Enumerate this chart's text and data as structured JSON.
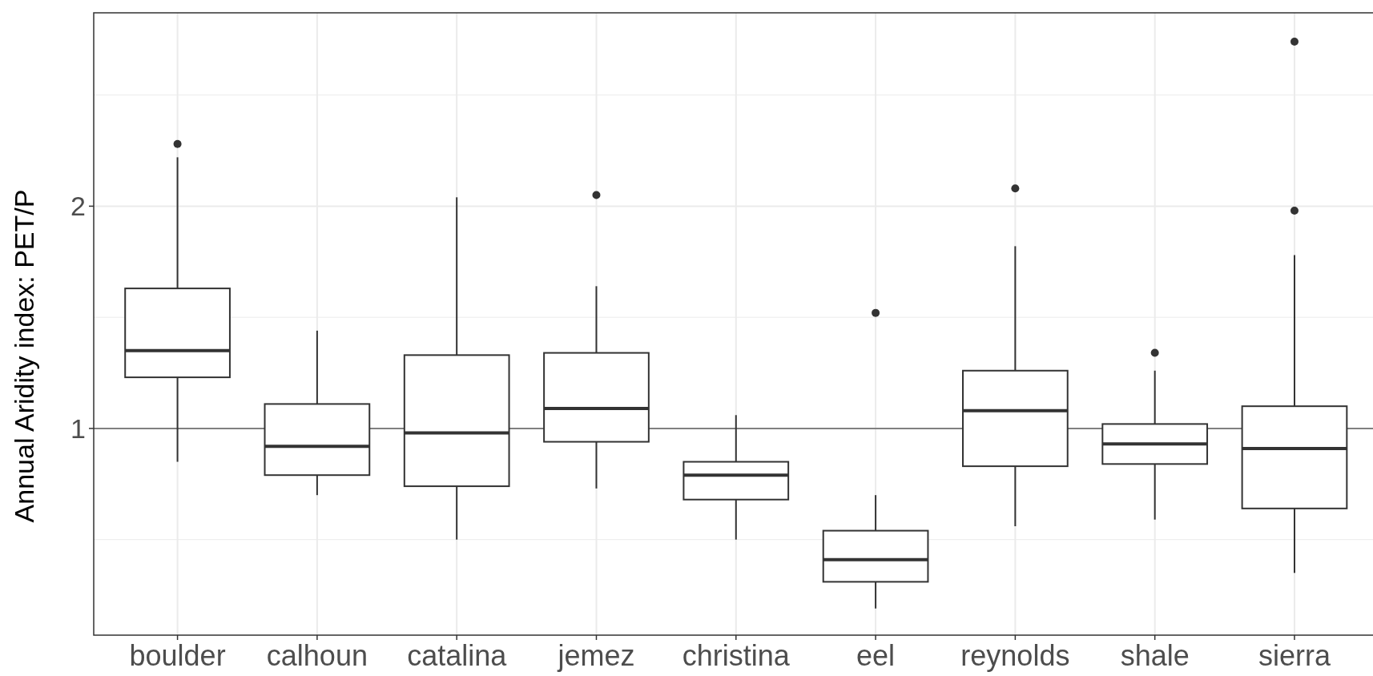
{
  "chart_data": {
    "type": "box",
    "ylabel": "Annual Aridity index: PET/P",
    "categories": [
      "boulder",
      "calhoun",
      "catalina",
      "jemez",
      "christina",
      "eel",
      "reynolds",
      "shale",
      "sierra"
    ],
    "boxes": [
      {
        "low": 0.85,
        "q1": 1.23,
        "median": 1.35,
        "q3": 1.63,
        "high": 2.22,
        "outliers": [
          2.28
        ]
      },
      {
        "low": 0.7,
        "q1": 0.79,
        "median": 0.92,
        "q3": 1.11,
        "high": 1.44
      },
      {
        "low": 0.5,
        "q1": 0.74,
        "median": 0.98,
        "q3": 1.33,
        "high": 2.04
      },
      {
        "low": 0.73,
        "q1": 0.94,
        "median": 1.09,
        "q3": 1.34,
        "high": 1.64,
        "outliers": [
          2.05
        ]
      },
      {
        "low": 0.5,
        "q1": 0.68,
        "median": 0.79,
        "q3": 0.85,
        "high": 1.06
      },
      {
        "low": 0.19,
        "q1": 0.31,
        "median": 0.41,
        "q3": 0.54,
        "high": 0.7,
        "outliers": [
          1.52
        ]
      },
      {
        "low": 0.56,
        "q1": 0.83,
        "median": 1.08,
        "q3": 1.26,
        "high": 1.82,
        "outliers": [
          2.08
        ]
      },
      {
        "low": 0.59,
        "q1": 0.84,
        "median": 0.93,
        "q3": 1.02,
        "high": 1.26,
        "outliers": [
          1.34
        ]
      },
      {
        "low": 0.35,
        "q1": 0.64,
        "median": 0.91,
        "q3": 1.1,
        "high": 1.78,
        "outliers": [
          2.74,
          1.98
        ]
      }
    ],
    "color": "#333333",
    "ylim": [
      0.07,
      2.87
    ],
    "yticks": [
      {
        "value": 0.5,
        "label": null
      },
      1,
      {
        "value": 1.5,
        "label": null
      },
      2,
      {
        "value": 2.5,
        "label": null
      }
    ],
    "grid": true,
    "ref_lines": [
      {
        "axis": "y",
        "value": 1,
        "color": "#808080"
      }
    ]
  }
}
